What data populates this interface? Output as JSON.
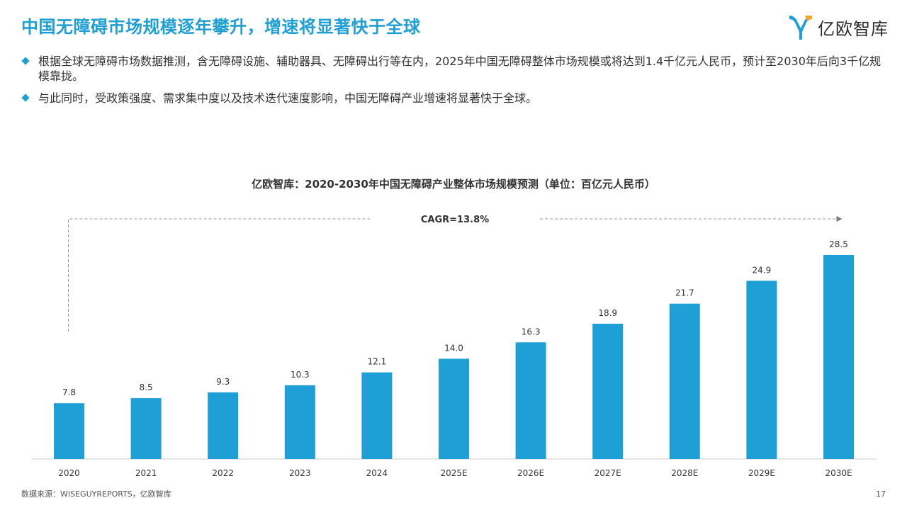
{
  "page": {
    "title": "中国无障碍市场规模逐年攀升，增速将显著快于全球",
    "logo_text": "亿欧智库",
    "bullets": [
      "根据全球无障碍市场数据推测，含无障碍设施、辅助器具、无障碍出行等在内，2025年中国无障碍整体市场规模或将达到1.4千亿元人民币，预计至2030年后向3千亿规模靠拢。",
      "与此同时，受政策强度、需求集中度以及技术迭代速度影响，中国无障碍产业增速将显著快于全球。"
    ],
    "source": "数据来源：WISEGUYREPORTS，亿欧智库",
    "page_number": "17"
  },
  "colors": {
    "accent": "#1e9fd6",
    "bar": "#1e9fd6",
    "axis": "#cccccc",
    "dashed": "#999999"
  },
  "chart_data": {
    "type": "bar",
    "title": "亿欧智库：2020-2030年中国无障碍产业整体市场规模预测（单位：百亿元人民币）",
    "categories": [
      "2020",
      "2021",
      "2022",
      "2023",
      "2024",
      "2025E",
      "2026E",
      "2027E",
      "2028E",
      "2029E",
      "2030E"
    ],
    "values": [
      7.8,
      8.5,
      9.3,
      10.3,
      12.1,
      14.0,
      16.3,
      18.9,
      21.7,
      24.9,
      28.5
    ],
    "value_labels": [
      "7.8",
      "8.5",
      "9.3",
      "10.3",
      "12.1",
      "14.0",
      "16.3",
      "18.9",
      "21.7",
      "24.9",
      "28.5"
    ],
    "annotation": "CAGR=13.8%",
    "ylim": [
      0,
      28.5
    ],
    "grid": false,
    "legend": false
  }
}
